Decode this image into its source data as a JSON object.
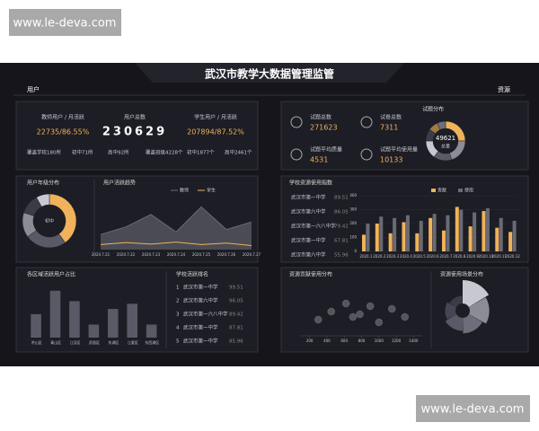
{
  "watermark": [
    "www.le-deva.com",
    "www.le-deva.com"
  ],
  "header": {
    "title": "武汉市教学大数据管理监管",
    "left": "用户",
    "right": "资源"
  },
  "user_stats": [
    {
      "label": "教师用户 / 月活跃",
      "value": "22735/86.55%"
    },
    {
      "label": "用户总数",
      "value": "230629"
    },
    {
      "label": "学生用户 / 月活跃",
      "value": "207894/87.52%"
    }
  ],
  "coverage": [
    "覆盖学校180所",
    "初中71所",
    "高中92所",
    "覆盖班级4228个",
    "初中1877个",
    "高中2461个"
  ],
  "resource_stats": [
    {
      "label": "试题总数",
      "value": "271623"
    },
    {
      "label": "试卷总数",
      "value": "7311"
    },
    {
      "label": "试题平均质量",
      "value": "4531"
    },
    {
      "label": "试题平均使用量",
      "value": "10133"
    }
  ],
  "resource_index_list": [
    [
      "武汉市第一中学",
      "89.51"
    ],
    [
      "武汉市第六中学",
      "86.05"
    ],
    [
      "武汉市第一六八中学",
      "79.42"
    ],
    [
      "武汉市第一中学",
      "67.81"
    ],
    [
      "武汉市第六中学",
      "55.96"
    ]
  ],
  "rankings": {
    "title": "学校活跃排名",
    "rows": [
      [
        "1",
        "武汉市第一中学",
        "99.51"
      ],
      [
        "2",
        "武汉市第六中学",
        "96.05"
      ],
      [
        "3",
        "武汉市第一六八中学",
        "89.42"
      ],
      [
        "4",
        "武汉市第一中学",
        "87.81"
      ],
      [
        "5",
        "武汉市第一中学",
        "85.96"
      ]
    ]
  },
  "chart_data": [
    {
      "type": "pie",
      "title": "试题分布",
      "center_value": "49621",
      "center_label": "总量",
      "values": [
        25,
        20,
        15,
        15,
        10,
        8,
        7
      ],
      "colors": [
        "#f0b25a",
        "#8c8c96",
        "#5a5a66",
        "#c8c8d0",
        "#3c3c48",
        "#a07a40",
        "#6e6e7a"
      ]
    },
    {
      "type": "pie",
      "title": "用户年级分布",
      "center_label": "初中",
      "values": [
        40,
        25,
        15,
        12,
        8
      ],
      "colors": [
        "#f0b25a",
        "#5a5a66",
        "#8c8c96",
        "#3c3c48",
        "#c8c8d0"
      ]
    },
    {
      "type": "line",
      "title": "用户活跃趋势",
      "categories": [
        "2020.7.21",
        "2020.7.22",
        "2020.7.23",
        "2020.7.24",
        "2020.7.25",
        "2020.7.26",
        "2020.7.27"
      ],
      "ylim": [
        0,
        100
      ],
      "series": [
        {
          "name": "教师",
          "color": "#6a6a74",
          "values": [
            30,
            45,
            70,
            35,
            85,
            40,
            55
          ]
        },
        {
          "name": "学生",
          "color": "#f0b25a",
          "values": [
            10,
            14,
            11,
            15,
            10,
            13,
            8
          ]
        }
      ]
    },
    {
      "type": "bar",
      "title": "学校资源使用指数",
      "categories": [
        "2020.1",
        "2020.2",
        "2020.3",
        "2020.4",
        "2020.5",
        "2020.6",
        "2020.7",
        "2020.8",
        "2020.9",
        "2020.10",
        "2020.11",
        "2020.12"
      ],
      "ylim": [
        0,
        400
      ],
      "yticks": [
        0,
        100,
        200,
        300,
        400
      ],
      "series": [
        {
          "name": "贡献",
          "color": "#f0b25a",
          "values": [
            120,
            200,
            130,
            210,
            130,
            240,
            150,
            320,
            180,
            290,
            170,
            140
          ]
        },
        {
          "name": "使用",
          "color": "#6a6a74",
          "values": [
            200,
            250,
            240,
            260,
            220,
            270,
            260,
            300,
            280,
            310,
            240,
            220
          ]
        }
      ]
    },
    {
      "type": "bar",
      "title": "各区域活跃用户占比",
      "categories": [
        "洪山区",
        "青山区",
        "江汉区",
        "武昌区",
        "东湖区",
        "江夏区",
        "东西湖区"
      ],
      "ylim": [
        0,
        100
      ],
      "series": [
        {
          "color": "#5a5a66",
          "values": [
            45,
            90,
            70,
            25,
            55,
            65,
            25
          ]
        }
      ]
    },
    {
      "type": "scatter",
      "title": "资源贡献使用分布",
      "xlim": [
        100,
        1500
      ],
      "xticks": [
        200,
        400,
        600,
        800,
        1000,
        1200,
        1400
      ],
      "ylim": [
        0,
        100
      ],
      "color": "#55555f",
      "x": [
        300,
        450,
        620,
        700,
        780,
        900,
        1000,
        1150,
        1300
      ],
      "values": [
        30,
        45,
        60,
        35,
        40,
        55,
        25,
        50,
        35
      ]
    },
    {
      "type": "rose",
      "title": "资源使用场景分布",
      "values": [
        90,
        75,
        60,
        50,
        40,
        30
      ],
      "colors": [
        "#c8c8d0",
        "#8c8c96",
        "#6e6e7a",
        "#5a5a66",
        "#464652",
        "#3c3c48"
      ]
    }
  ]
}
